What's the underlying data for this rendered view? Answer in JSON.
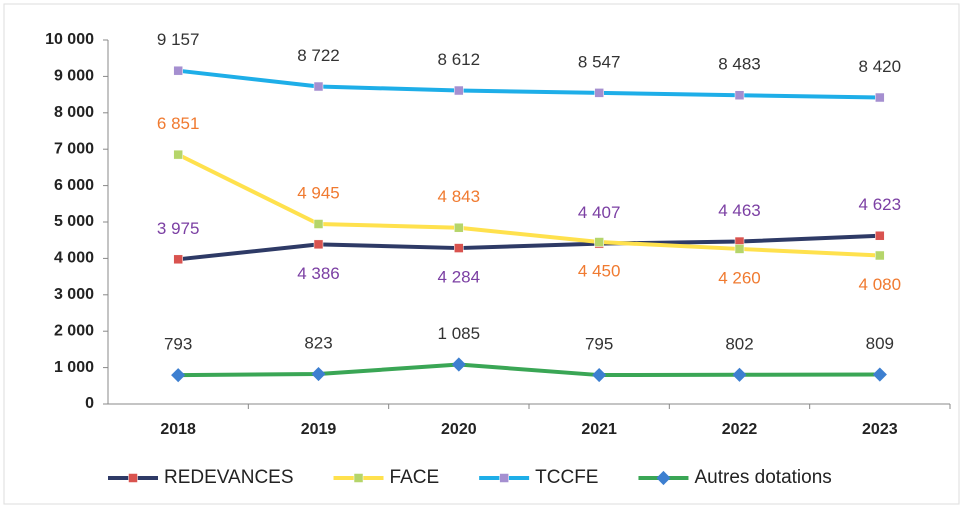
{
  "chart_data": {
    "type": "line",
    "categories": [
      "2018",
      "2019",
      "2020",
      "2021",
      "2022",
      "2023"
    ],
    "series": [
      {
        "name": "REDEVANCES",
        "color": "#2e3a66",
        "marker_color": "#d9534f",
        "label_color": "#7b3fa3",
        "values": [
          3975,
          4386,
          4284,
          4407,
          4463,
          4623
        ],
        "value_labels": [
          "3 975",
          "4 386",
          "4 284",
          "4 407",
          "4 463",
          "4 623"
        ]
      },
      {
        "name": "FACE",
        "color": "#ffe14d",
        "marker_color": "#b5d56a",
        "label_color": "#f07a30",
        "values": [
          6851,
          4945,
          4843,
          4450,
          4260,
          4080
        ],
        "value_labels": [
          "6 851",
          "4 945",
          "4 843",
          "4 450",
          "4 260",
          "4 080"
        ]
      },
      {
        "name": "TCCFE",
        "color": "#1eaee8",
        "marker_color": "#a58fd0",
        "label_color": "#333333",
        "values": [
          9157,
          8722,
          8612,
          8547,
          8483,
          8420
        ],
        "value_labels": [
          "9 157",
          "8 722",
          "8 612",
          "8 547",
          "8 483",
          "8 420"
        ]
      },
      {
        "name": "Autres dotations",
        "color": "#3aa655",
        "marker_color": "#3d7fd0",
        "label_color": "#333333",
        "values": [
          793,
          823,
          1085,
          795,
          802,
          809
        ],
        "value_labels": [
          "793",
          "823",
          "1 085",
          "795",
          "802",
          "809"
        ]
      }
    ],
    "ylim": [
      0,
      10000
    ],
    "yticks": [
      0,
      {
        "value": 1000,
        "label": "1 000"
      },
      {
        "value": 2000,
        "label": "2 000"
      },
      {
        "value": 3000,
        "label": "3 000"
      },
      {
        "value": 4000,
        "label": "4 000"
      },
      {
        "value": 5000,
        "label": "5 000"
      },
      {
        "value": 6000,
        "label": "6 000"
      },
      {
        "value": 7000,
        "label": "7 000"
      },
      {
        "value": 8000,
        "label": "8 000"
      },
      {
        "value": 9000,
        "label": "9 000"
      },
      {
        "value": 10000,
        "label": "10 000"
      }
    ],
    "legend": "bottom",
    "grid": false
  }
}
